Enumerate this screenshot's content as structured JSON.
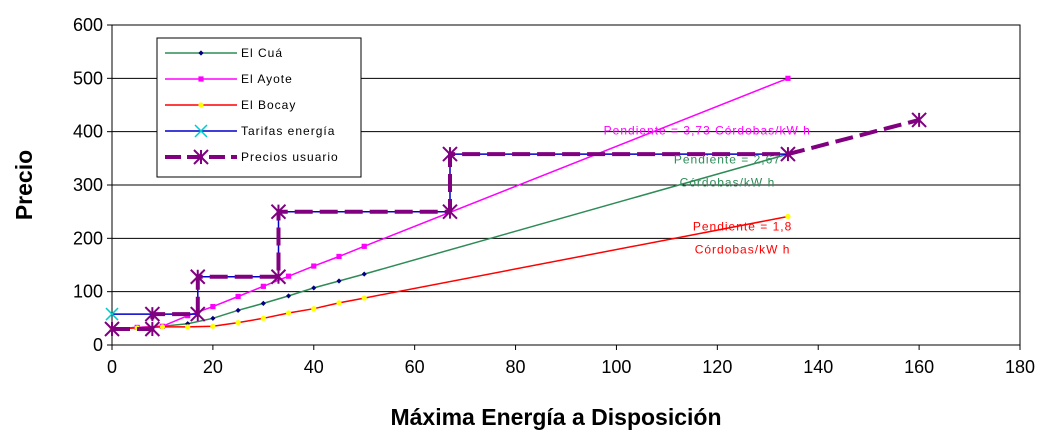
{
  "chart_data": {
    "type": "line",
    "title": "",
    "xlabel": "Máxima Energía a Disposición",
    "ylabel": "Precio",
    "xlim": [
      0,
      180
    ],
    "ylim": [
      0,
      600
    ],
    "x_ticks": [
      0,
      20,
      40,
      60,
      80,
      100,
      120,
      140,
      160,
      180
    ],
    "y_ticks": [
      0,
      100,
      200,
      300,
      400,
      500,
      600
    ],
    "grid": "horizontal",
    "legend_position": "top-left",
    "series": [
      {
        "name": "El Cuá",
        "color": "#2e8b57",
        "marker": "diamond",
        "dash": "solid",
        "points": [
          [
            0,
            30
          ],
          [
            5,
            33
          ],
          [
            10,
            35
          ],
          [
            15,
            40
          ],
          [
            20,
            50
          ],
          [
            25,
            65
          ],
          [
            30,
            78
          ],
          [
            35,
            92
          ],
          [
            40,
            107
          ],
          [
            45,
            120
          ],
          [
            50,
            133
          ],
          [
            134,
            358
          ]
        ]
      },
      {
        "name": "El Ayote",
        "color": "#ff00ff",
        "marker": "square",
        "dash": "solid",
        "points": [
          [
            0,
            30
          ],
          [
            5,
            33
          ],
          [
            10,
            35
          ],
          [
            15,
            55
          ],
          [
            20,
            72
          ],
          [
            25,
            91
          ],
          [
            30,
            110
          ],
          [
            35,
            129
          ],
          [
            40,
            148
          ],
          [
            45,
            166
          ],
          [
            50,
            185
          ],
          [
            134,
            500
          ]
        ]
      },
      {
        "name": "El Bocay",
        "color": "#ff0000",
        "marker": "circle",
        "dash": "solid",
        "points": [
          [
            0,
            30
          ],
          [
            5,
            32
          ],
          [
            10,
            34
          ],
          [
            15,
            34
          ],
          [
            20,
            35
          ],
          [
            25,
            42
          ],
          [
            30,
            50
          ],
          [
            35,
            60
          ],
          [
            40,
            68
          ],
          [
            45,
            79
          ],
          [
            50,
            88
          ],
          [
            134,
            241
          ]
        ]
      },
      {
        "name": "Tarifas energía",
        "color": "#0000cc",
        "marker": "x",
        "dash": "solid",
        "points": [
          [
            0,
            58
          ],
          [
            8,
            58
          ],
          [
            17,
            58
          ],
          [
            17,
            128
          ],
          [
            33,
            128
          ],
          [
            33,
            250
          ],
          [
            67,
            250
          ],
          [
            67,
            358
          ],
          [
            134,
            358
          ]
        ]
      },
      {
        "name": "Precios usuario",
        "color": "#800080",
        "marker": "star",
        "dash": "dashed",
        "points": [
          [
            0,
            30
          ],
          [
            8,
            30
          ],
          [
            8,
            58
          ],
          [
            17,
            58
          ],
          [
            17,
            128
          ],
          [
            33,
            128
          ],
          [
            33,
            250
          ],
          [
            67,
            250
          ],
          [
            67,
            358
          ],
          [
            134,
            358
          ],
          [
            160,
            422
          ]
        ]
      }
    ],
    "annotations": [
      {
        "lines": [
          "Pendiente = 3,73 Córdobas/kW h"
        ],
        "color": "#ff00ff",
        "x": 118,
        "y": 395
      },
      {
        "lines": [
          "Pendiente = 2,67",
          "Córdobas/kW h"
        ],
        "color": "#2e8b57",
        "x": 122,
        "y": 340
      },
      {
        "lines": [
          "Pendiente = 1,8",
          "Córdobas/kW h"
        ],
        "color": "#ff0000",
        "x": 125,
        "y": 215
      }
    ]
  }
}
